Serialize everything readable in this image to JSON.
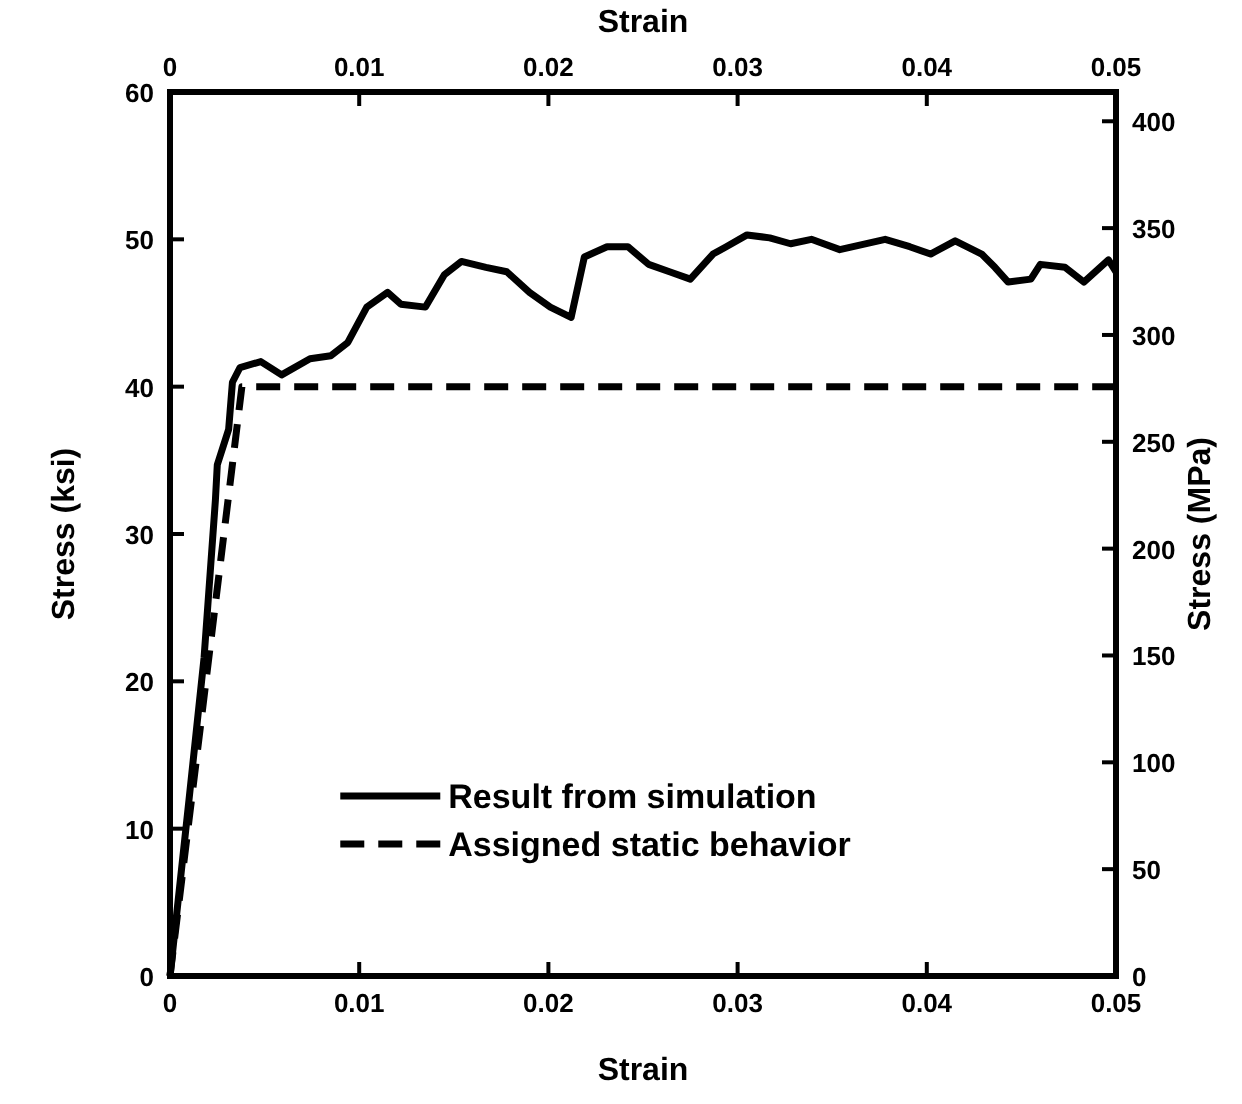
{
  "chart_data": {
    "type": "line",
    "xlabel": "Strain",
    "ylabel": "Stress (ksi)",
    "y2label": "Stress (MPa)",
    "x2label": "Strain",
    "xlim": [
      0,
      0.05
    ],
    "xticks": [
      0,
      0.01,
      0.02,
      0.03,
      0.04,
      0.05
    ],
    "x2lim": [
      0,
      0.05
    ],
    "x2ticks": [
      0,
      0.01,
      0.02,
      0.03,
      0.04,
      0.05
    ],
    "ylim": [
      0,
      60
    ],
    "yticks": [
      0,
      10,
      20,
      30,
      40,
      50,
      60
    ],
    "y2lim": [
      0,
      413.7
    ],
    "y2ticks": [
      0,
      50,
      100,
      150,
      200,
      250,
      300,
      350,
      400
    ],
    "grid": false,
    "legend": "bottom",
    "marker": "none",
    "series": [
      {
        "name": "Result from simulation",
        "color": "#000000",
        "line_style": "solid",
        "x": [
          0,
          0.001,
          0.0018,
          0.0024,
          0.0025,
          0.0031,
          0.0033,
          0.0037,
          0.0048,
          0.0059,
          0.0074,
          0.0085,
          0.0094,
          0.0104,
          0.0115,
          0.0122,
          0.0135,
          0.0145,
          0.0154,
          0.0167,
          0.0178,
          0.019,
          0.0201,
          0.0212,
          0.0219,
          0.0231,
          0.0242,
          0.0253,
          0.0264,
          0.0275,
          0.0287,
          0.0294,
          0.0305,
          0.0317,
          0.0328,
          0.0339,
          0.0354,
          0.0378,
          0.0391,
          0.0402,
          0.0415,
          0.0429,
          0.0436,
          0.0443,
          0.0455,
          0.046,
          0.0473,
          0.0483,
          0.0496,
          0.05
        ],
        "values": [
          0,
          11.9,
          21.6,
          32.3,
          34.7,
          37.1,
          40.3,
          41.3,
          41.7,
          40.8,
          41.9,
          42.1,
          43,
          45.4,
          46.4,
          45.6,
          45.4,
          47.6,
          48.5,
          48.1,
          47.8,
          46.4,
          45.4,
          44.7,
          48.8,
          49.5,
          49.5,
          48.3,
          47.8,
          47.3,
          49,
          49.5,
          50.3,
          50.1,
          49.7,
          50,
          49.3,
          50,
          49.5,
          49,
          49.9,
          49,
          48.1,
          47.1,
          47.3,
          48.3,
          48.1,
          47.1,
          48.6,
          47.8
        ]
      },
      {
        "name": "Assigned static behavior",
        "color": "#000000",
        "line_style": "dashed",
        "x": [
          0,
          0.0038,
          0.05
        ],
        "values": [
          0,
          40,
          40
        ]
      }
    ]
  }
}
